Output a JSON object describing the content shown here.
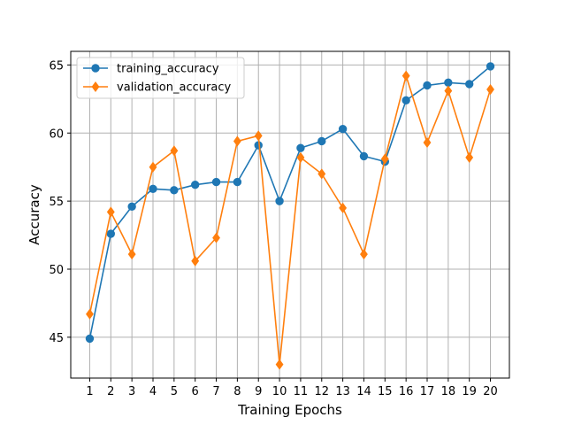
{
  "chart_data": {
    "type": "line",
    "title": "",
    "xlabel": "Training Epochs",
    "ylabel": "Accuracy",
    "x": [
      1,
      2,
      3,
      4,
      5,
      6,
      7,
      8,
      9,
      10,
      11,
      12,
      13,
      14,
      15,
      16,
      17,
      18,
      19,
      20
    ],
    "xlim": [
      0.1,
      20.9
    ],
    "ylim": [
      42.0,
      66.0
    ],
    "yticks": [
      45,
      50,
      55,
      60,
      65
    ],
    "grid": true,
    "legend_position": "upper-left",
    "series": [
      {
        "name": "training_accuracy",
        "color": "#1f77b4",
        "marker": "circle",
        "values": [
          44.9,
          52.6,
          54.6,
          55.9,
          55.8,
          56.2,
          56.4,
          56.4,
          59.1,
          55.0,
          58.9,
          59.4,
          60.3,
          58.3,
          57.9,
          62.4,
          63.5,
          63.7,
          63.6,
          64.9
        ]
      },
      {
        "name": "validation_accuracy",
        "color": "#ff7f0e",
        "marker": "diamond",
        "values": [
          46.7,
          54.2,
          51.1,
          57.5,
          58.7,
          50.6,
          52.3,
          59.4,
          59.8,
          43.0,
          58.2,
          57.0,
          54.5,
          51.1,
          58.1,
          64.2,
          59.3,
          63.1,
          58.2,
          63.2
        ]
      }
    ]
  }
}
